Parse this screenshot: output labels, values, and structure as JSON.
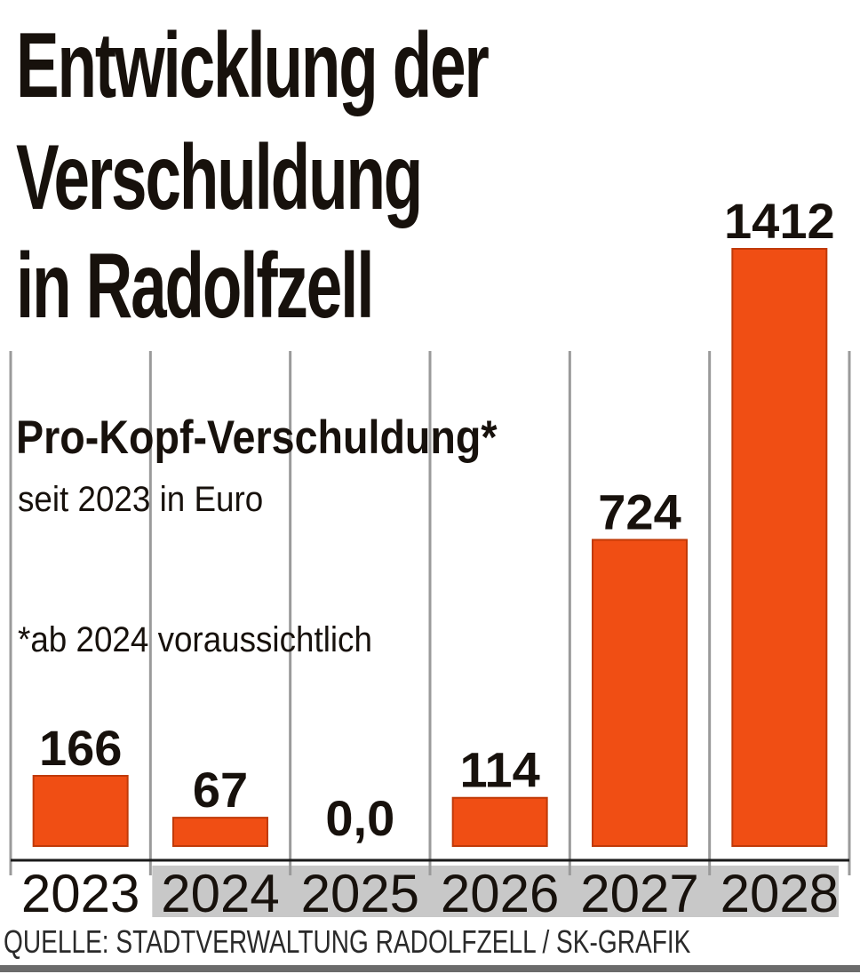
{
  "title_lines": [
    "Entwicklung der",
    "Verschuldung",
    "in Radolfzell"
  ],
  "subtitle": "Pro-Kopf-Verschuldung*",
  "unit_note": "seit 2023 in Euro",
  "footnote": "*ab 2024 voraussichtlich",
  "source": "QUELLE: STADTVERWALTUNG RADOLFZELL / SK-GRAFIK",
  "colors": {
    "bar": "#f04e14",
    "bar_edge": "#c03a08",
    "text": "#17110c",
    "separator": "#9a9a9a",
    "axis": "#1a1a1a",
    "year_band": "#c8c8c8"
  },
  "chart_data": {
    "type": "bar",
    "title": "Entwicklung der Verschuldung in Radolfzell",
    "subtitle": "Pro-Kopf-Verschuldung*",
    "ylabel": "",
    "xlabel": "",
    "unit": "Euro",
    "categories": [
      "2023",
      "2024",
      "2025",
      "2026",
      "2027",
      "2028"
    ],
    "values": [
      166,
      67,
      0,
      114,
      724,
      1412
    ],
    "value_labels": [
      "166",
      "67",
      "0,0",
      "114",
      "724",
      "1412"
    ],
    "ylim": [
      0,
      1412
    ],
    "grid": false,
    "legend": "none",
    "shaded_categories": [
      "2024",
      "2025",
      "2026",
      "2027",
      "2028"
    ]
  }
}
